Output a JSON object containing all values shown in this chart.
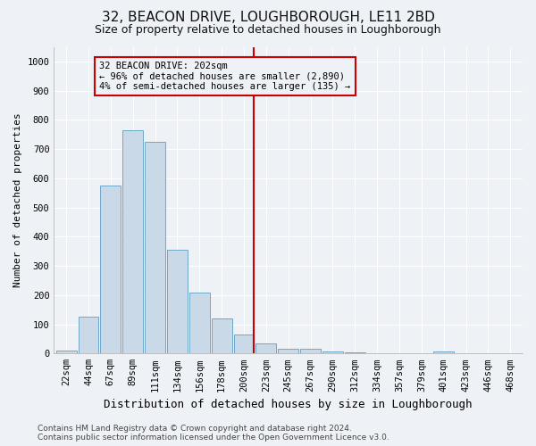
{
  "title": "32, BEACON DRIVE, LOUGHBOROUGH, LE11 2BD",
  "subtitle": "Size of property relative to detached houses in Loughborough",
  "xlabel": "Distribution of detached houses by size in Loughborough",
  "ylabel": "Number of detached properties",
  "categories": [
    "22sqm",
    "44sqm",
    "67sqm",
    "89sqm",
    "111sqm",
    "134sqm",
    "156sqm",
    "178sqm",
    "200sqm",
    "223sqm",
    "245sqm",
    "267sqm",
    "290sqm",
    "312sqm",
    "334sqm",
    "357sqm",
    "379sqm",
    "401sqm",
    "423sqm",
    "446sqm",
    "468sqm"
  ],
  "values": [
    10,
    125,
    575,
    765,
    725,
    355,
    210,
    120,
    65,
    35,
    15,
    15,
    8,
    5,
    0,
    0,
    0,
    8,
    0,
    0,
    0
  ],
  "bar_color": "#c9d9e8",
  "bar_edge_color": "#6fa8c8",
  "vline_index": 8,
  "vline_color": "#cc0000",
  "annotation_text": "32 BEACON DRIVE: 202sqm\n← 96% of detached houses are smaller (2,890)\n4% of semi-detached houses are larger (135) →",
  "annotation_box_color": "#cc0000",
  "ylim": [
    0,
    1050
  ],
  "yticks": [
    0,
    100,
    200,
    300,
    400,
    500,
    600,
    700,
    800,
    900,
    1000
  ],
  "footer_text": "Contains HM Land Registry data © Crown copyright and database right 2024.\nContains public sector information licensed under the Open Government Licence v3.0.",
  "background_color": "#eef2f7",
  "grid_color": "#ffffff",
  "title_fontsize": 11,
  "subtitle_fontsize": 9,
  "xlabel_fontsize": 9,
  "ylabel_fontsize": 8,
  "tick_fontsize": 7.5,
  "footer_fontsize": 6.5,
  "annot_fontsize": 7.5
}
